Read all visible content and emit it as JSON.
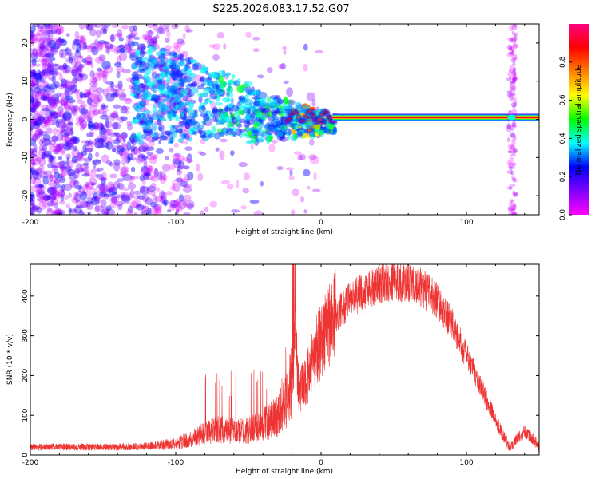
{
  "title": "S225.2026.083.17.52.G07",
  "chart_data": [
    {
      "type": "heatmap",
      "xlabel": "Height of straight line (km)",
      "ylabel": "Frequency (Hz)",
      "xlim": [
        -200,
        150
      ],
      "ylim": [
        -25,
        25
      ],
      "xticks": [
        -200,
        -100,
        0,
        100
      ],
      "yticks": [
        -20,
        -10,
        0,
        10,
        20
      ],
      "colorbar": {
        "label": "Normalized spectral amplitude",
        "range": [
          0,
          1
        ],
        "ticks": [
          0.0,
          0.2,
          0.4,
          0.6,
          0.8
        ],
        "colormap": [
          "#ff00ff",
          "#8000ff",
          "#0000ff",
          "#00ffff",
          "#00ff00",
          "#ffff00",
          "#ff8000",
          "#ff0000",
          "#ff0080"
        ]
      },
      "features": [
        {
          "name": "steady tone",
          "x_range": [
            10,
            150
          ],
          "frequency_hz": 0.5,
          "amplitude": 1.0
        },
        {
          "name": "scatter band",
          "x_range": [
            -130,
            10
          ],
          "frequency_hz_range": [
            -9,
            12
          ],
          "amplitude_range": [
            0.2,
            0.6
          ]
        },
        {
          "name": "low-amplitude noise",
          "x_range": [
            -200,
            -80
          ],
          "frequency_hz_range": [
            -25,
            25
          ],
          "amplitude_range": [
            0,
            0.2
          ]
        },
        {
          "name": "vertical stripe",
          "x_center": 131,
          "frequency_hz_range": [
            -25,
            25
          ],
          "amplitude_range": [
            0,
            0.15
          ]
        }
      ]
    },
    {
      "type": "line",
      "xlabel": "Height of straight line (km)",
      "ylabel": "SNR (10 * v/v)",
      "xlim": [
        -200,
        150
      ],
      "ylim": [
        0,
        480
      ],
      "xticks": [
        -200,
        -100,
        0,
        100
      ],
      "yticks": [
        0,
        100,
        200,
        300,
        400
      ],
      "color": "#ee3333",
      "series": [
        {
          "name": "SNR",
          "x": [
            -200,
            -180,
            -160,
            -140,
            -120,
            -100,
            -90,
            -80,
            -70,
            -60,
            -50,
            -40,
            -30,
            -25,
            -20,
            -18,
            -15,
            -10,
            -5,
            0,
            5,
            10,
            20,
            30,
            40,
            50,
            60,
            70,
            80,
            90,
            100,
            110,
            120,
            125,
            130,
            135,
            140,
            145,
            150
          ],
          "values": [
            20,
            20,
            20,
            20,
            22,
            28,
            40,
            55,
            65,
            60,
            62,
            75,
            100,
            140,
            180,
            300,
            160,
            190,
            250,
            290,
            330,
            350,
            390,
            415,
            430,
            440,
            430,
            420,
            390,
            330,
            250,
            170,
            90,
            50,
            20,
            40,
            60,
            45,
            20
          ]
        }
      ]
    }
  ]
}
